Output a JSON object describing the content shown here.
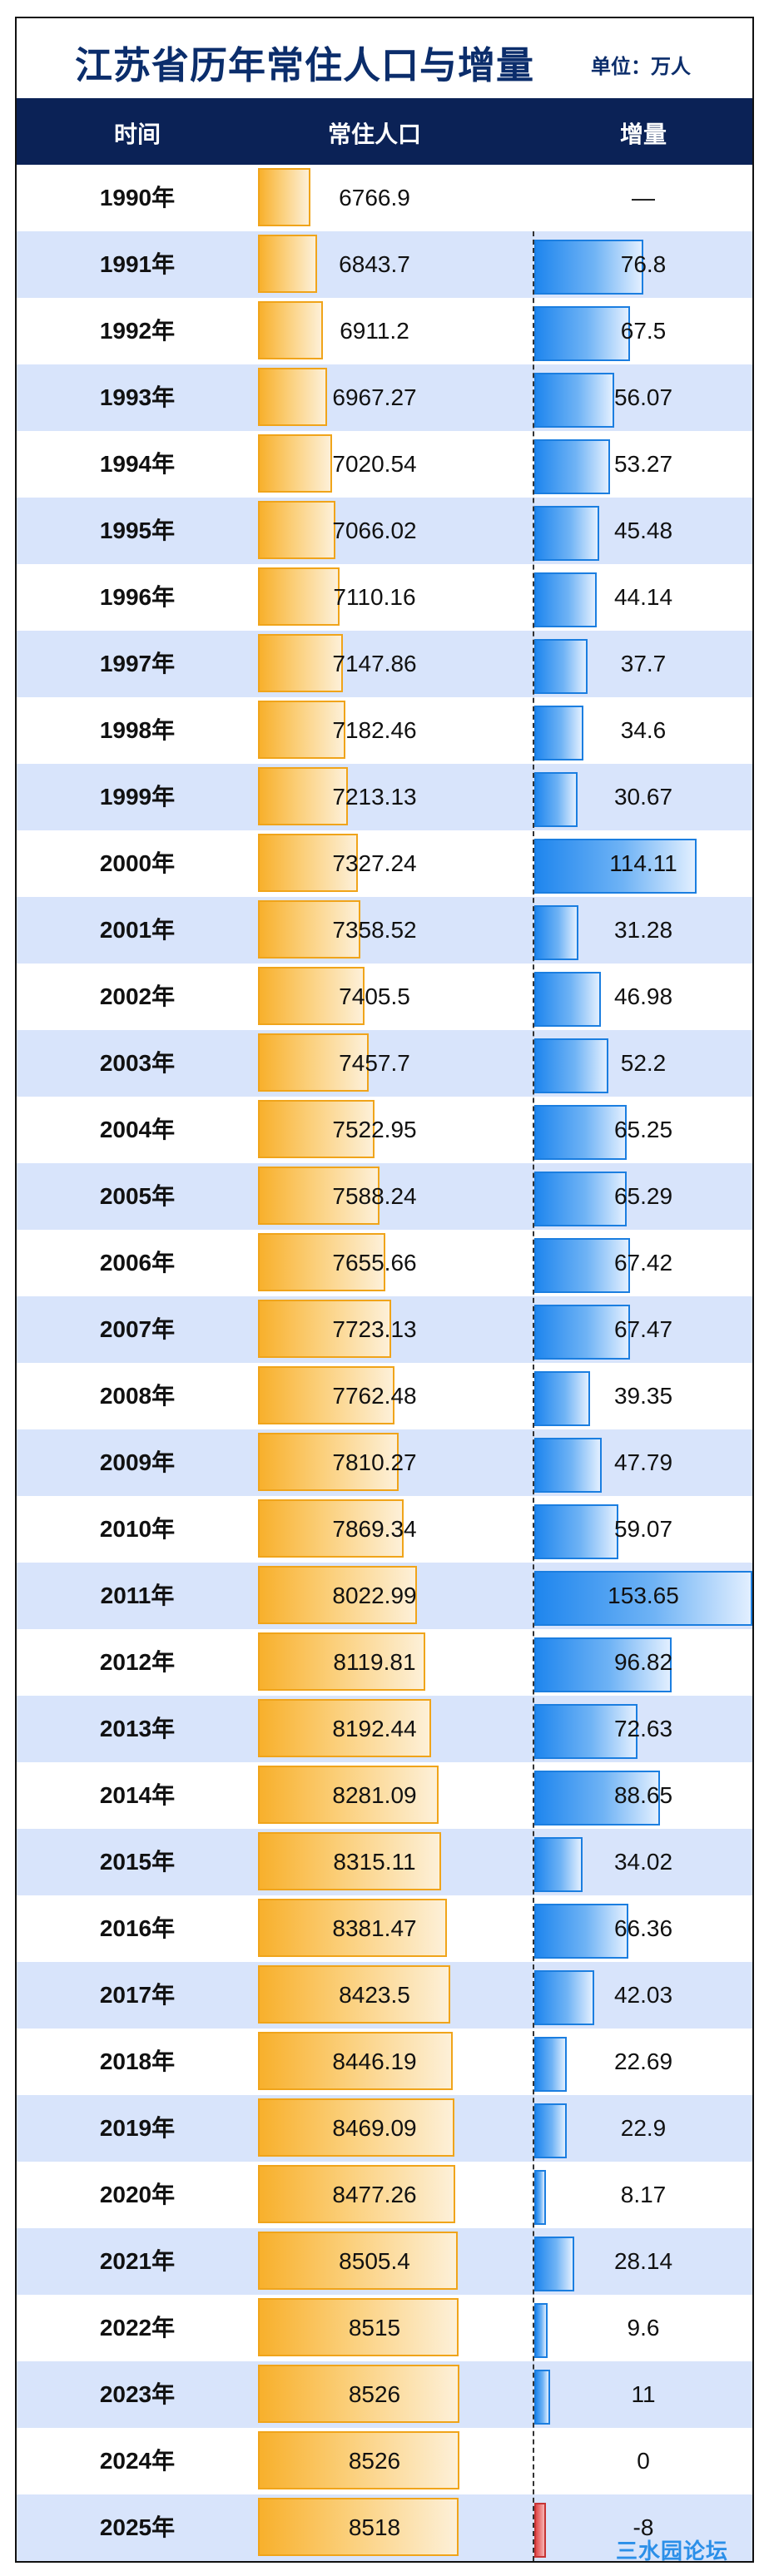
{
  "title": "江苏省历年常住人口与增量",
  "unit": "单位：万人",
  "headers": {
    "year": "时间",
    "population": "常住人口",
    "increase": "增量"
  },
  "watermark": "三水园论坛",
  "colors": {
    "header_bg": "#0b2256",
    "population_bar": "#f8b02c",
    "increase_bar": "#1f86ee",
    "decrease_bar": "#e04848",
    "row_alt": "#d8e4fb"
  },
  "chart_data": {
    "type": "table",
    "categories": [
      "1990年",
      "1991年",
      "1992年",
      "1993年",
      "1994年",
      "1995年",
      "1996年",
      "1997年",
      "1998年",
      "1999年",
      "2000年",
      "2001年",
      "2002年",
      "2003年",
      "2004年",
      "2005年",
      "2006年",
      "2007年",
      "2008年",
      "2009年",
      "2010年",
      "2011年",
      "2012年",
      "2013年",
      "2014年",
      "2015年",
      "2016年",
      "2017年",
      "2018年",
      "2019年",
      "2020年",
      "2021年",
      "2022年",
      "2023年",
      "2024年",
      "2025年"
    ],
    "population": [
      "6766.9",
      "6843.7",
      "6911.2",
      "6967.27",
      "7020.54",
      "7066.02",
      "7110.16",
      "7147.86",
      "7182.46",
      "7213.13",
      "7327.24",
      "7358.52",
      "7405.5",
      "7457.7",
      "7522.95",
      "7588.24",
      "7655.66",
      "7723.13",
      "7762.48",
      "7810.27",
      "7869.34",
      "8022.99",
      "8119.81",
      "8192.44",
      "8281.09",
      "8315.11",
      "8381.47",
      "8423.5",
      "8446.19",
      "8469.09",
      "8477.26",
      "8505.4",
      "8515",
      "8526",
      "8526",
      "8518"
    ],
    "increase": [
      "—",
      "76.8",
      "67.5",
      "56.07",
      "53.27",
      "45.48",
      "44.14",
      "37.7",
      "34.6",
      "30.67",
      "114.11",
      "31.28",
      "46.98",
      "52.2",
      "65.25",
      "65.29",
      "67.42",
      "67.47",
      "39.35",
      "47.79",
      "59.07",
      "153.65",
      "96.82",
      "72.63",
      "88.65",
      "34.02",
      "66.36",
      "42.03",
      "22.69",
      "22.9",
      "8.17",
      "28.14",
      "9.6",
      "11",
      "0",
      "-8"
    ]
  }
}
